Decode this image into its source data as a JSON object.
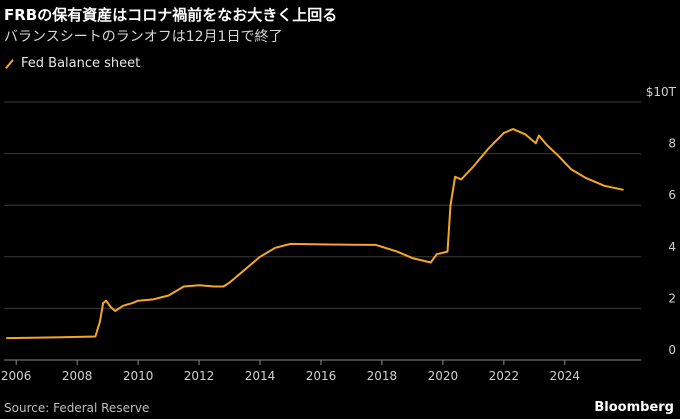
{
  "header": {
    "title": "FRBの保有資産はコロナ禍前をなお大きく上回る",
    "subtitle": "バランスシートのランオフは12月1日で終了"
  },
  "legend": {
    "label": "Fed Balance sheet"
  },
  "footer": {
    "source": "Source: Federal Reserve",
    "brand": "Bloomberg"
  },
  "colors": {
    "series": "#f5a623",
    "grid": "#3a3a3a",
    "background": "#000000"
  },
  "chart_data": {
    "type": "line",
    "title": "FRBの保有資産はコロナ禍前をなお大きく上回る",
    "subtitle": "バランスシートのランオフは12月1日で終了",
    "xlabel": "",
    "ylabel": "",
    "x_range": [
      2005.6,
      2026.5
    ],
    "ylim": [
      0,
      10
    ],
    "y_ticks": [
      {
        "value": 0,
        "label": "0"
      },
      {
        "value": 2,
        "label": "2"
      },
      {
        "value": 4,
        "label": "4"
      },
      {
        "value": 6,
        "label": "6"
      },
      {
        "value": 8,
        "label": "8"
      },
      {
        "value": 10,
        "label": "$10T"
      }
    ],
    "x_ticks": [
      "2006",
      "2008",
      "2010",
      "2012",
      "2014",
      "2016",
      "2018",
      "2020",
      "2022",
      "2024"
    ],
    "grid": "horizontal",
    "legend_position": "top-left",
    "series": [
      {
        "name": "Fed Balance sheet",
        "points": [
          [
            2005.7,
            0.85
          ],
          [
            2006.5,
            0.86
          ],
          [
            2007.5,
            0.88
          ],
          [
            2008.6,
            0.91
          ],
          [
            2008.75,
            1.5
          ],
          [
            2008.85,
            2.2
          ],
          [
            2008.95,
            2.3
          ],
          [
            2009.1,
            2.05
          ],
          [
            2009.25,
            1.9
          ],
          [
            2009.5,
            2.1
          ],
          [
            2009.8,
            2.2
          ],
          [
            2010.0,
            2.3
          ],
          [
            2010.5,
            2.35
          ],
          [
            2011.0,
            2.5
          ],
          [
            2011.5,
            2.85
          ],
          [
            2012.0,
            2.9
          ],
          [
            2012.5,
            2.85
          ],
          [
            2012.8,
            2.85
          ],
          [
            2013.0,
            3.0
          ],
          [
            2013.5,
            3.5
          ],
          [
            2014.0,
            4.0
          ],
          [
            2014.5,
            4.35
          ],
          [
            2015.0,
            4.5
          ],
          [
            2016.0,
            4.48
          ],
          [
            2017.0,
            4.47
          ],
          [
            2017.8,
            4.46
          ],
          [
            2018.5,
            4.2
          ],
          [
            2019.0,
            3.95
          ],
          [
            2019.6,
            3.78
          ],
          [
            2019.8,
            4.1
          ],
          [
            2020.15,
            4.2
          ],
          [
            2020.25,
            6.0
          ],
          [
            2020.4,
            7.1
          ],
          [
            2020.6,
            7.0
          ],
          [
            2021.0,
            7.5
          ],
          [
            2021.5,
            8.2
          ],
          [
            2022.0,
            8.8
          ],
          [
            2022.3,
            8.95
          ],
          [
            2022.7,
            8.75
          ],
          [
            2023.05,
            8.4
          ],
          [
            2023.15,
            8.7
          ],
          [
            2023.4,
            8.35
          ],
          [
            2023.8,
            7.9
          ],
          [
            2024.2,
            7.4
          ],
          [
            2024.7,
            7.05
          ],
          [
            2025.3,
            6.75
          ],
          [
            2025.9,
            6.6
          ]
        ]
      }
    ]
  }
}
